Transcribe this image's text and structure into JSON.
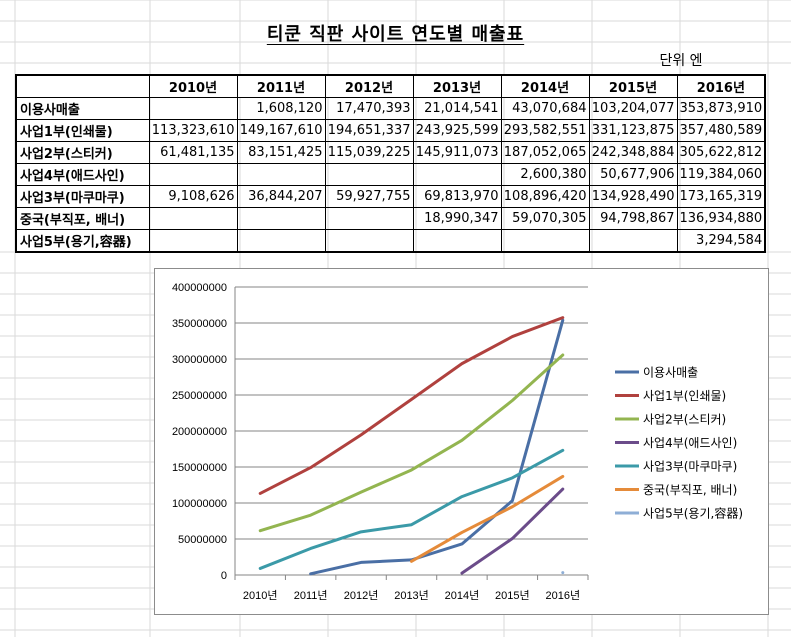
{
  "title": "티쿤 직판 사이트 연도별 매출표",
  "unit_label": "단위 엔",
  "table": {
    "years": [
      "2010년",
      "2011년",
      "2012년",
      "2013년",
      "2014년",
      "2015년",
      "2016년"
    ],
    "rows": [
      {
        "label": "이용사매출",
        "values": [
          "",
          "1,608,120",
          "17,470,393",
          "21,014,541",
          "43,070,684",
          "103,204,077",
          "353,873,910"
        ]
      },
      {
        "label": "사업1부(인쇄물)",
        "values": [
          "113,323,610",
          "149,167,610",
          "194,651,337",
          "243,925,599",
          "293,582,551",
          "331,123,875",
          "357,480,589"
        ]
      },
      {
        "label": "사업2부(스티커)",
        "values": [
          "61,481,135",
          "83,151,425",
          "115,039,225",
          "145,911,073",
          "187,052,065",
          "242,348,884",
          "305,622,812"
        ]
      },
      {
        "label": "사업4부(애드사인)",
        "values": [
          "",
          "",
          "",
          "",
          "2,600,380",
          "50,677,906",
          "119,384,060"
        ]
      },
      {
        "label": "사업3부(마쿠마쿠)",
        "values": [
          "9,108,626",
          "36,844,207",
          "59,927,755",
          "69,813,970",
          "108,896,420",
          "134,928,490",
          "173,165,319"
        ]
      },
      {
        "label": "중국(부직포, 배너)",
        "values": [
          "",
          "",
          "",
          "18,990,347",
          "59,070,305",
          "94,798,867",
          "136,934,880"
        ]
      },
      {
        "label": "사업5부(용기,容器)",
        "values": [
          "",
          "",
          "",
          "",
          "",
          "",
          "3,294,584"
        ]
      }
    ]
  },
  "chart_data": {
    "type": "line",
    "title": "",
    "xlabel": "",
    "ylabel": "",
    "categories": [
      "2010년",
      "2011년",
      "2012년",
      "2013년",
      "2014년",
      "2015년",
      "2016년"
    ],
    "ylim": [
      0,
      400000000
    ],
    "yticks": [
      0,
      50000000,
      100000000,
      150000000,
      200000000,
      250000000,
      300000000,
      350000000,
      400000000
    ],
    "ytick_labels": [
      "0",
      "50000000",
      "100000000",
      "150000000",
      "200000000",
      "250000000",
      "300000000",
      "350000000",
      "400000000"
    ],
    "grid": true,
    "legend_position": "right",
    "series": [
      {
        "name": "이용사매출",
        "color": "#4a6fa5",
        "values": [
          null,
          1608120,
          17470393,
          21014541,
          43070684,
          103204077,
          353873910
        ]
      },
      {
        "name": "사업1부(인쇄물)",
        "color": "#b0413e",
        "values": [
          113323610,
          149167610,
          194651337,
          243925599,
          293582551,
          331123875,
          357480589
        ]
      },
      {
        "name": "사업2부(스티커)",
        "color": "#93b550",
        "values": [
          61481135,
          83151425,
          115039225,
          145911073,
          187052065,
          242348884,
          305622812
        ]
      },
      {
        "name": "사업4부(애드사인)",
        "color": "#6b4c8a",
        "values": [
          null,
          null,
          null,
          null,
          2600380,
          50677906,
          119384060
        ]
      },
      {
        "name": "사업3부(마쿠마쿠)",
        "color": "#3b9aa8",
        "values": [
          9108626,
          36844207,
          59927755,
          69813970,
          108896420,
          134928490,
          173165319
        ]
      },
      {
        "name": "중국(부직포, 배너)",
        "color": "#e58b3a",
        "values": [
          null,
          null,
          null,
          18990347,
          59070305,
          94798867,
          136934880
        ]
      },
      {
        "name": "사업5부(용기,容器)",
        "color": "#8eaed6",
        "values": [
          null,
          null,
          null,
          null,
          null,
          null,
          3294584
        ]
      }
    ]
  }
}
